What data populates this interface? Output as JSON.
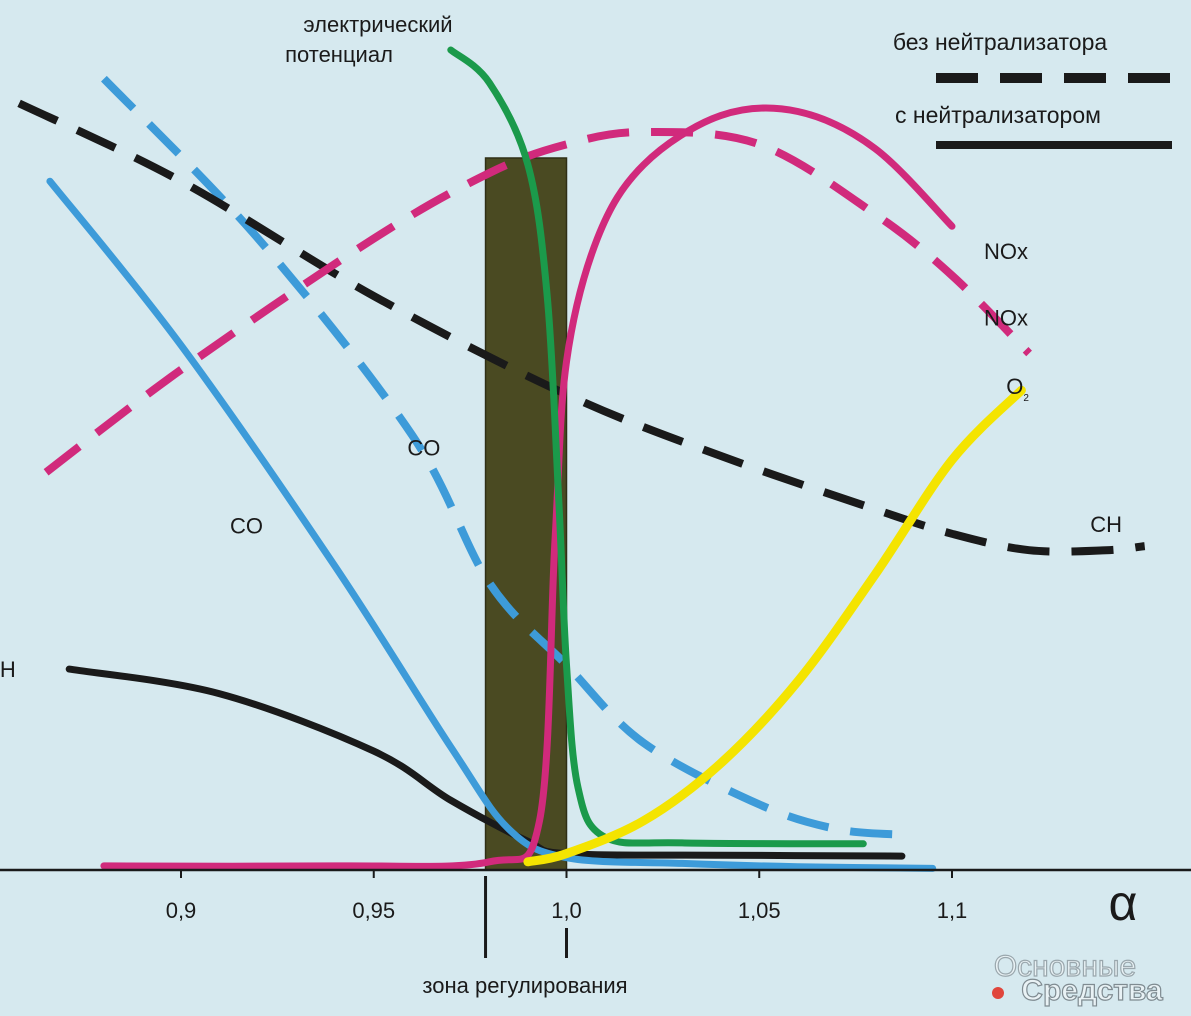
{
  "chart_data": {
    "type": "line",
    "title": "",
    "xlabel": "α",
    "ylabel": "",
    "xlim": [
      0.858,
      1.15
    ],
    "x_ticks": [
      0.9,
      0.95,
      1.0,
      1.05,
      1.1
    ],
    "x_tick_labels": [
      "0,9",
      "0,95",
      "1,0",
      "1,05",
      "1,1"
    ],
    "control_zone": {
      "label": "зона регулирования",
      "from": 0.979,
      "to": 1.0,
      "fill": "#4a4a22"
    },
    "legend": {
      "placement": "top-right",
      "entries": [
        {
          "label": "без нейтрализатора",
          "style": "dashed"
        },
        {
          "label": "с нейтрализатором",
          "style": "solid"
        }
      ]
    },
    "series": [
      {
        "name": "CO",
        "label": "CO",
        "group": "без нейтрализатора",
        "style": "dashed",
        "color": "#3d9bd9",
        "label_x": 0.963,
        "label_y": 0.515,
        "points": [
          [
            0.88,
            0.965
          ],
          [
            0.92,
            0.77
          ],
          [
            0.96,
            0.53
          ],
          [
            0.98,
            0.35
          ],
          [
            1.0,
            0.25
          ],
          [
            1.02,
            0.155
          ],
          [
            1.05,
            0.08
          ],
          [
            1.07,
            0.05
          ],
          [
            1.087,
            0.043
          ]
        ]
      },
      {
        "name": "CO",
        "label": "CO",
        "group": "с нейтрализатором",
        "style": "solid",
        "color": "#3d9bd9",
        "label_x": 0.917,
        "label_y": 0.42,
        "points": [
          [
            0.866,
            0.84
          ],
          [
            0.9,
            0.64
          ],
          [
            0.94,
            0.37
          ],
          [
            0.97,
            0.15
          ],
          [
            0.985,
            0.05
          ],
          [
            1.0,
            0.015
          ],
          [
            1.03,
            0.008
          ],
          [
            1.06,
            0.004
          ],
          [
            1.095,
            0.002
          ]
        ]
      },
      {
        "name": "CH",
        "label": "CH",
        "group": "без нейтрализатора",
        "style": "dashed",
        "color": "#1a1a1a",
        "label_x": 1.14,
        "label_y": 0.422,
        "points": [
          [
            0.858,
            0.935
          ],
          [
            0.9,
            0.84
          ],
          [
            0.95,
            0.7
          ],
          [
            1.0,
            0.58
          ],
          [
            1.04,
            0.505
          ],
          [
            1.08,
            0.44
          ],
          [
            1.1,
            0.41
          ],
          [
            1.12,
            0.39
          ],
          [
            1.14,
            0.39
          ],
          [
            1.15,
            0.395
          ]
        ]
      },
      {
        "name": "CH",
        "label": "CH",
        "group": "с нейтрализатором",
        "style": "solid",
        "color": "#1a1a1a",
        "label_x": 0.853,
        "label_y": 0.245,
        "points": [
          [
            0.871,
            0.245
          ],
          [
            0.91,
            0.215
          ],
          [
            0.95,
            0.145
          ],
          [
            0.97,
            0.085
          ],
          [
            0.99,
            0.035
          ],
          [
            1.0,
            0.02
          ],
          [
            1.04,
            0.018
          ],
          [
            1.087,
            0.017
          ]
        ]
      },
      {
        "name": "NOx",
        "label": "NOx",
        "group": "без нейтрализатора",
        "style": "dashed",
        "color": "#d12a7c",
        "label_x": 1.114,
        "label_y": 0.674,
        "points": [
          [
            0.865,
            0.485
          ],
          [
            0.9,
            0.61
          ],
          [
            0.95,
            0.77
          ],
          [
            0.98,
            0.85
          ],
          [
            1.0,
            0.885
          ],
          [
            1.02,
            0.9
          ],
          [
            1.05,
            0.885
          ],
          [
            1.08,
            0.8
          ],
          [
            1.1,
            0.725
          ],
          [
            1.12,
            0.63
          ]
        ]
      },
      {
        "name": "NOx",
        "label": "NOx",
        "group": "с нейтрализатором",
        "style": "solid",
        "color": "#d12a7c",
        "label_x": 1.114,
        "label_y": 0.755,
        "points": [
          [
            0.88,
            0.005
          ],
          [
            0.94,
            0.005
          ],
          [
            0.98,
            0.01
          ],
          [
            0.993,
            0.06
          ],
          [
            0.997,
            0.4
          ],
          [
            1.0,
            0.62
          ],
          [
            1.008,
            0.77
          ],
          [
            1.02,
            0.86
          ],
          [
            1.04,
            0.92
          ],
          [
            1.06,
            0.925
          ],
          [
            1.08,
            0.88
          ],
          [
            1.1,
            0.785
          ]
        ]
      },
      {
        "name": "электрический потенциал",
        "label": "электрический потенциал",
        "group": "",
        "style": "solid",
        "color": "#1b9a4b",
        "label_x": 0.97,
        "label_y": 1.0,
        "points": [
          [
            0.97,
            1.0
          ],
          [
            0.98,
            0.96
          ],
          [
            0.99,
            0.86
          ],
          [
            0.995,
            0.7
          ],
          [
            0.998,
            0.45
          ],
          [
            1.0,
            0.25
          ],
          [
            1.003,
            0.1
          ],
          [
            1.01,
            0.04
          ],
          [
            1.03,
            0.033
          ],
          [
            1.077,
            0.032
          ]
        ]
      },
      {
        "name": "O2",
        "label": "O",
        "label_sub": "2",
        "group": "",
        "style": "solid",
        "color": "#f4e400",
        "label_x": 1.117,
        "label_y": 0.59,
        "points": [
          [
            0.99,
            0.01
          ],
          [
            1.0,
            0.02
          ],
          [
            1.02,
            0.06
          ],
          [
            1.04,
            0.13
          ],
          [
            1.06,
            0.23
          ],
          [
            1.08,
            0.36
          ],
          [
            1.1,
            0.5
          ],
          [
            1.118,
            0.585
          ]
        ]
      }
    ]
  },
  "watermark": {
    "line1": "Основные",
    "line2": "Средства"
  }
}
